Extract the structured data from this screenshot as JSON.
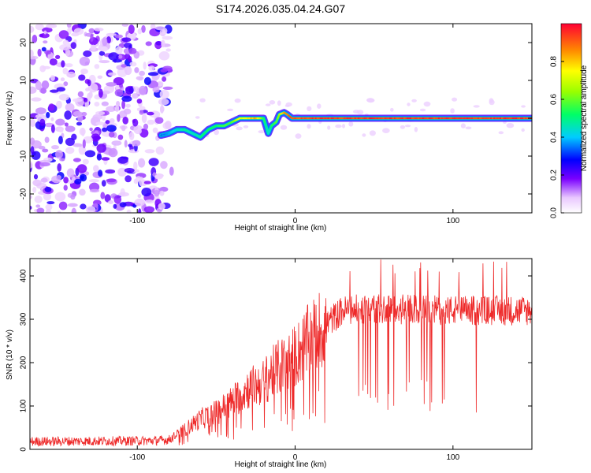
{
  "title": "S174.2026.035.04.24.G07",
  "chart_data": [
    {
      "type": "heatmap",
      "xlabel": "Height of straight line (km)",
      "ylabel": "Frequency (Hz)",
      "xlim": [
        -168,
        150
      ],
      "ylim": [
        -25,
        25
      ],
      "xticks": [
        -100,
        0,
        100
      ],
      "yticks": [
        -20,
        -10,
        0,
        10,
        20
      ],
      "noise_region_x": [
        -168,
        -80
      ],
      "ridge": {
        "x": [
          -85,
          -80,
          -75,
          -70,
          -65,
          -60,
          -55,
          -50,
          -45,
          -40,
          -35,
          -30,
          -25,
          -20,
          -17,
          -15,
          -12,
          -10,
          -7,
          -5,
          -2,
          0,
          20,
          50,
          100,
          150
        ],
        "freq": [
          -4.5,
          -4,
          -3,
          -3,
          -4,
          -5,
          -3,
          -2,
          -2,
          -1,
          0,
          0,
          0,
          0,
          -4,
          -2,
          -1,
          1,
          1.5,
          1,
          0,
          0,
          0,
          0,
          0,
          0
        ],
        "amplitude": [
          0.35,
          0.4,
          0.45,
          0.5,
          0.45,
          0.5,
          0.55,
          0.55,
          0.6,
          0.6,
          0.75,
          0.8,
          0.85,
          0.6,
          0.45,
          0.55,
          0.6,
          0.7,
          0.85,
          0.9,
          0.95,
          0.95,
          0.98,
          0.98,
          0.98,
          0.98
        ]
      },
      "colorbar": {
        "label": "Normalized spectral amplitude",
        "ticks": [
          "0.0",
          "0.2",
          "0.4",
          "0.6",
          "0.8"
        ],
        "range": [
          0,
          1
        ]
      }
    },
    {
      "type": "line",
      "xlabel": "Height of straight line (km)",
      "ylabel": "SNR (10 * v/v)",
      "xlim": [
        -168,
        150
      ],
      "ylim": [
        0,
        440
      ],
      "xticks": [
        -100,
        0,
        100
      ],
      "yticks": [
        0,
        100,
        200,
        300,
        400
      ],
      "color": "#ee2a2a",
      "trend": {
        "x": [
          -168,
          -90,
          -80,
          -70,
          -60,
          -50,
          -40,
          -30,
          -20,
          -15,
          -10,
          -5,
          0,
          10,
          20,
          30,
          50,
          100,
          150
        ],
        "snr": [
          18,
          20,
          22,
          45,
          70,
          85,
          110,
          140,
          155,
          175,
          190,
          200,
          215,
          255,
          290,
          320,
          325,
          320,
          320
        ]
      }
    }
  ]
}
